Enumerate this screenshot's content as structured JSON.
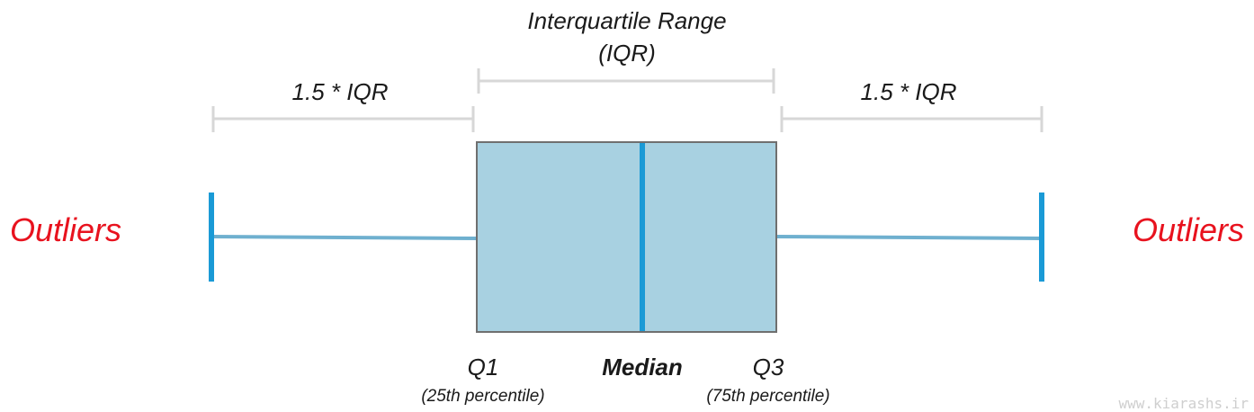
{
  "diagram": {
    "iqr_title_line1": "Interquartile Range",
    "iqr_title_line2": "(IQR)",
    "left_whisker_label": "1.5 * IQR",
    "right_whisker_label": "1.5 * IQR",
    "left_outliers_label": "Outliers",
    "right_outliers_label": "Outliers",
    "q1_label": "Q1",
    "q1_sublabel": "(25th percentile)",
    "median_label": "Median",
    "q3_label": "Q3",
    "q3_sublabel": "(75th percentile)",
    "watermark": "www.kiarashs.ir"
  },
  "colors": {
    "box_fill": "#a8d1e1",
    "box_stroke": "#6f6f6f",
    "median_line": "#1a9ad6",
    "whisker_line": "#6fb0cf",
    "whisker_cap": "#1a9ad6",
    "bracket": "#d7d7d7",
    "outlier_text": "#e8121e",
    "text": "#1a1a1a",
    "watermark": "#cfcfcf"
  }
}
